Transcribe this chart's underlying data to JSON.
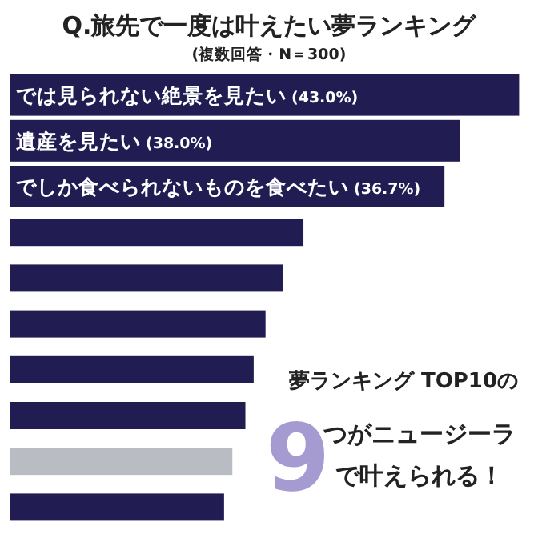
{
  "chart_data": {
    "type": "bar",
    "orientation": "horizontal",
    "title": "Q.旅先で一度は叶えたい夢ランキング",
    "subtitle": "(複数回答・N＝300)",
    "categories": [
      "では見られない絶景を見たい",
      "遺産を見たい",
      "でしか食べられないものを食べたい",
      null,
      null,
      null,
      null,
      null,
      null,
      null
    ],
    "values": [
      43.0,
      38.0,
      36.7,
      24.8,
      23.1,
      21.6,
      20.6,
      19.9,
      18.8,
      18.1
    ],
    "colors": [
      "#211d52",
      "#211d52",
      "#211d52",
      "#211d52",
      "#211d52",
      "#211d52",
      "#211d52",
      "#211d52",
      "#b9bcc3",
      "#211d52"
    ],
    "value_labels": [
      "(43.0%)",
      "(38.0%)",
      "(36.7%)",
      null,
      null,
      null,
      null,
      null,
      null,
      null
    ],
    "annotations": [
      "夢ランキング TOP10の",
      "9",
      "つがニュージーラ",
      "で叶えられる！"
    ]
  }
}
